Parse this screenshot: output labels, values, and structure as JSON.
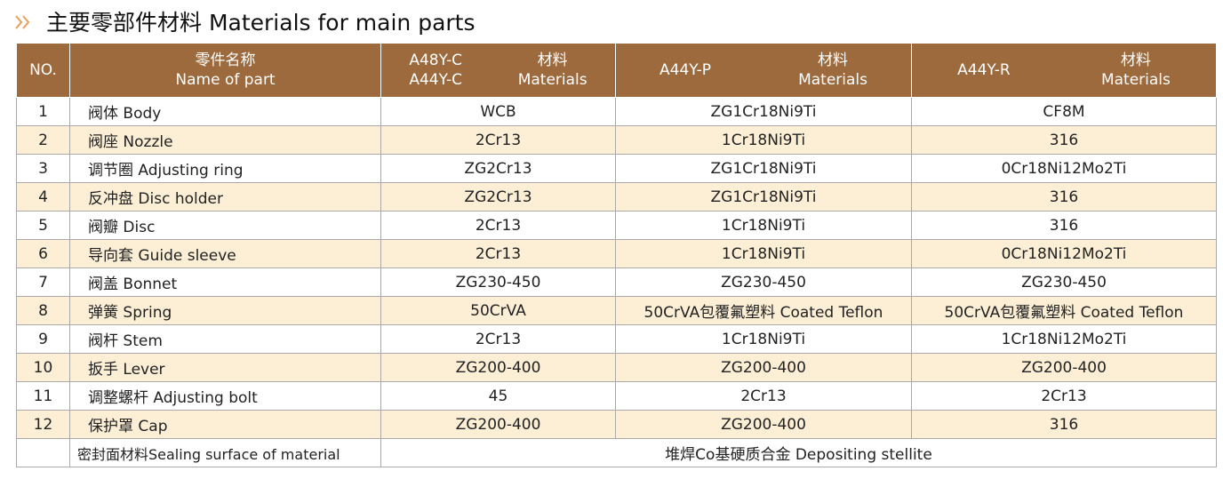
{
  "title": "主要零部件材料 Materials for main parts",
  "header": {
    "no": "NO.",
    "name_cn": "零件名称",
    "name_en": "Name of part",
    "columns": [
      {
        "models": [
          "A48Y-C",
          "A44Y-C"
        ],
        "label_cn": "材料",
        "label_en": "Materials"
      },
      {
        "models": [
          "A44Y-P"
        ],
        "label_cn": "材料",
        "label_en": "Materials"
      },
      {
        "models": [
          "A44Y-R"
        ],
        "label_cn": "材料",
        "label_en": "Materials"
      }
    ]
  },
  "rows": [
    [
      "1",
      "阀体  Body",
      "WCB",
      "ZG1Cr18Ni9Ti",
      "CF8M"
    ],
    [
      "2",
      "阀座  Nozzle",
      "2Cr13",
      "1Cr18Ni9Ti",
      "316"
    ],
    [
      "3",
      "调节圈  Adjusting ring",
      "ZG2Cr13",
      "ZG1Cr18Ni9Ti",
      "0Cr18Ni12Mo2Ti"
    ],
    [
      "4",
      "反冲盘  Disc holder",
      "ZG2Cr13",
      "ZG1Cr18Ni9Ti",
      "316"
    ],
    [
      "5",
      "阀瓣  Disc",
      "2Cr13",
      "1Cr18Ni9Ti",
      "316"
    ],
    [
      "6",
      "导向套  Guide sleeve",
      "2Cr13",
      "1Cr18Ni9Ti",
      "0Cr18Ni12Mo2Ti"
    ],
    [
      "7",
      "阀盖  Bonnet",
      "ZG230-450",
      "ZG230-450",
      "ZG230-450"
    ],
    [
      "8",
      "弹簧  Spring",
      "50CrVA",
      "50CrVA包覆氟塑料 Coated Teflon",
      "50CrVA包覆氟塑料 Coated Teflon"
    ],
    [
      "9",
      "阀杆  Stem",
      "2Cr13",
      "1Cr18Ni9Ti",
      "1Cr18Ni12Mo2Ti"
    ],
    [
      "10",
      "扳手  Lever",
      "ZG200-400",
      "ZG200-400",
      "ZG200-400"
    ],
    [
      "11",
      "调整螺杆  Adjusting bolt",
      "45",
      "2Cr13",
      "2Cr13"
    ],
    [
      "12",
      "保护罩  Cap",
      "ZG200-400",
      "ZG200-400",
      "316"
    ]
  ],
  "footer": {
    "label": "密封面材料Sealing surface of material",
    "value": "堆焊Co基硬质合金 Depositing stellite"
  }
}
